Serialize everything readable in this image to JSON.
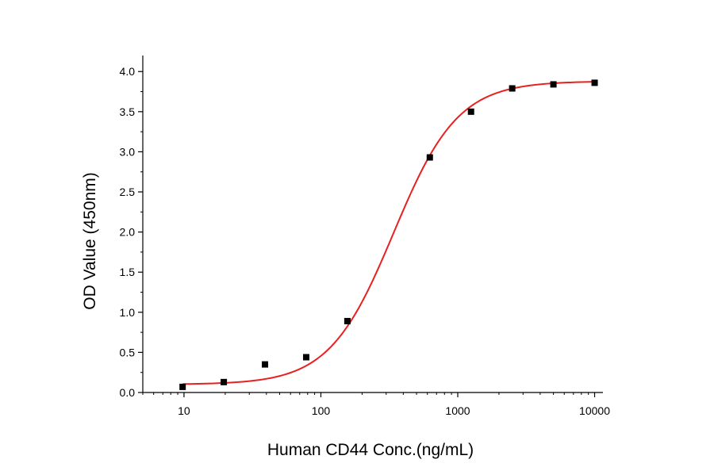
{
  "chart_data": {
    "type": "scatter",
    "title": "",
    "xlabel": "Human CD44 Conc.(ng/mL)",
    "ylabel": "OD Value (450nm)",
    "x_scale": "log",
    "xlim": [
      5,
      11500
    ],
    "ylim": [
      0.0,
      4.2
    ],
    "x_ticks": [
      10,
      100,
      1000,
      10000
    ],
    "x_tick_labels": [
      "10",
      "100",
      "1000",
      "10000"
    ],
    "y_ticks": [
      0.0,
      0.5,
      1.0,
      1.5,
      2.0,
      2.5,
      3.0,
      3.5,
      4.0
    ],
    "y_tick_labels": [
      "0.0",
      "0.5",
      "1.0",
      "1.5",
      "2.0",
      "2.5",
      "3.0",
      "3.5",
      "4.0"
    ],
    "grid": false,
    "legend": "none",
    "series": [
      {
        "type": "scatter",
        "marker": "square",
        "color": "#000000",
        "x": [
          9.77,
          19.53,
          39.06,
          78.13,
          156.25,
          625,
          1250,
          2500,
          5000,
          10000
        ],
        "y": [
          0.07,
          0.13,
          0.35,
          0.44,
          0.89,
          2.93,
          3.5,
          3.79,
          3.84,
          3.86
        ]
      },
      {
        "type": "line",
        "fit": "four-parameter logistic",
        "color": "#e8211f",
        "params": {
          "bottom": 0.1,
          "top": 3.88,
          "ec50": 340,
          "hill": 1.85
        },
        "x_range": [
          9.77,
          10000
        ]
      }
    ]
  }
}
